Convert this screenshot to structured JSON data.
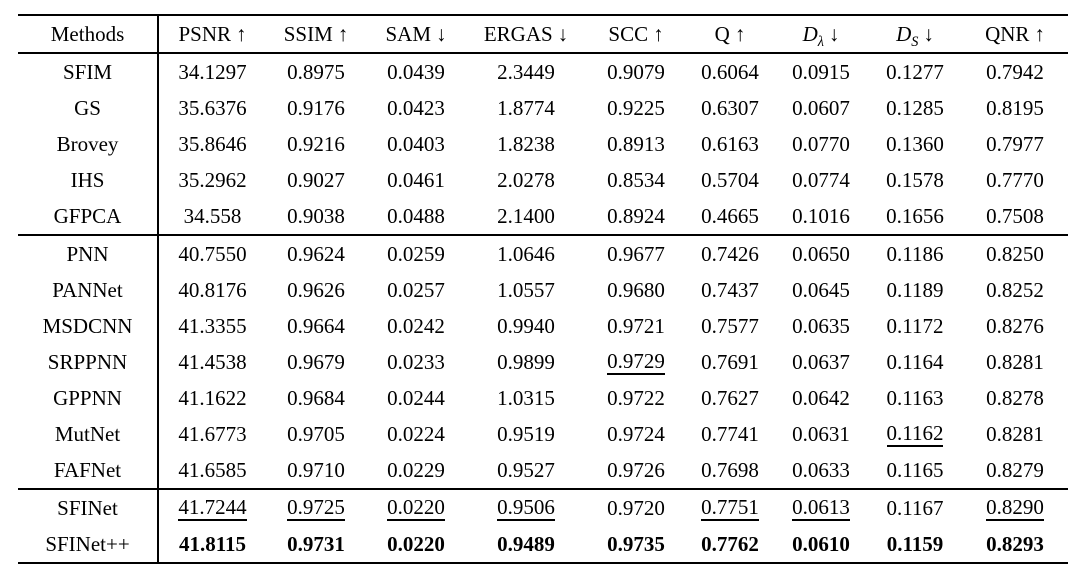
{
  "colors": {
    "text": "#000000",
    "background": "#ffffff",
    "rule": "#000000"
  },
  "table": {
    "columns": [
      {
        "key": "methods",
        "label": "Methods",
        "arrow": "",
        "italic": false
      },
      {
        "key": "psnr",
        "label": "PSNR",
        "arrow": "↑",
        "italic": false
      },
      {
        "key": "ssim",
        "label": "SSIM",
        "arrow": "↑",
        "italic": false
      },
      {
        "key": "sam",
        "label": "SAM",
        "arrow": "↓",
        "italic": false
      },
      {
        "key": "ergas",
        "label": "ERGAS",
        "arrow": "↓",
        "italic": false
      },
      {
        "key": "scc",
        "label": "SCC",
        "arrow": "↑",
        "italic": false
      },
      {
        "key": "q",
        "label": "Q",
        "arrow": "↑",
        "italic": false
      },
      {
        "key": "d-lambda",
        "label": "D",
        "sub": "λ",
        "arrow": "↓",
        "italic": true
      },
      {
        "key": "d-s",
        "label": "D",
        "sub": "S",
        "arrow": "↓",
        "italic": true
      },
      {
        "key": "qnr",
        "label": "QNR",
        "arrow": "↑",
        "italic": false
      }
    ],
    "groups": [
      {
        "rows": [
          {
            "method": "SFIM",
            "values": [
              "34.1297",
              "0.8975",
              "0.0439",
              "2.3449",
              "0.9079",
              "0.6064",
              "0.0915",
              "0.1277",
              "0.7942"
            ],
            "underline": [],
            "bold": []
          },
          {
            "method": "GS",
            "values": [
              "35.6376",
              "0.9176",
              "0.0423",
              "1.8774",
              "0.9225",
              "0.6307",
              "0.0607",
              "0.1285",
              "0.8195"
            ],
            "underline": [],
            "bold": []
          },
          {
            "method": "Brovey",
            "values": [
              "35.8646",
              "0.9216",
              "0.0403",
              "1.8238",
              "0.8913",
              "0.6163",
              "0.0770",
              "0.1360",
              "0.7977"
            ],
            "underline": [],
            "bold": []
          },
          {
            "method": "IHS",
            "values": [
              "35.2962",
              "0.9027",
              "0.0461",
              "2.0278",
              "0.8534",
              "0.5704",
              "0.0774",
              "0.1578",
              "0.7770"
            ],
            "underline": [],
            "bold": []
          },
          {
            "method": "GFPCA",
            "values": [
              "34.558",
              "0.9038",
              "0.0488",
              "2.1400",
              "0.8924",
              "0.4665",
              "0.1016",
              "0.1656",
              "0.7508"
            ],
            "underline": [],
            "bold": []
          }
        ]
      },
      {
        "rows": [
          {
            "method": "PNN",
            "values": [
              "40.7550",
              "0.9624",
              "0.0259",
              "1.0646",
              "0.9677",
              "0.7426",
              "0.0650",
              "0.1186",
              "0.8250"
            ],
            "underline": [],
            "bold": []
          },
          {
            "method": "PANNet",
            "values": [
              "40.8176",
              "0.9626",
              "0.0257",
              "1.0557",
              "0.9680",
              "0.7437",
              "0.0645",
              "0.1189",
              "0.8252"
            ],
            "underline": [],
            "bold": []
          },
          {
            "method": "MSDCNN",
            "values": [
              "41.3355",
              "0.9664",
              "0.0242",
              "0.9940",
              "0.9721",
              "0.7577",
              "0.0635",
              "0.1172",
              "0.8276"
            ],
            "underline": [],
            "bold": []
          },
          {
            "method": "SRPPNN",
            "values": [
              "41.4538",
              "0.9679",
              "0.0233",
              "0.9899",
              "0.9729",
              "0.7691",
              "0.0637",
              "0.1164",
              "0.8281"
            ],
            "underline": [
              4
            ],
            "bold": []
          },
          {
            "method": "GPPNN",
            "values": [
              "41.1622",
              "0.9684",
              "0.0244",
              "1.0315",
              "0.9722",
              "0.7627",
              "0.0642",
              "0.1163",
              "0.8278"
            ],
            "underline": [],
            "bold": []
          },
          {
            "method": "MutNet",
            "values": [
              "41.6773",
              "0.9705",
              "0.0224",
              "0.9519",
              "0.9724",
              "0.7741",
              "0.0631",
              "0.1162",
              "0.8281"
            ],
            "underline": [
              7
            ],
            "bold": []
          },
          {
            "method": "FAFNet",
            "values": [
              "41.6585",
              "0.9710",
              "0.0229",
              "0.9527",
              "0.9726",
              "0.7698",
              "0.0633",
              "0.1165",
              "0.8279"
            ],
            "underline": [],
            "bold": []
          }
        ]
      },
      {
        "rows": [
          {
            "method": "SFINet",
            "values": [
              "41.7244",
              "0.9725",
              "0.0220",
              "0.9506",
              "0.9720",
              "0.7751",
              "0.0613",
              "0.1167",
              "0.8290"
            ],
            "underline": [
              0,
              1,
              2,
              3,
              5,
              6,
              8
            ],
            "bold": []
          },
          {
            "method": "SFINet++",
            "values": [
              "41.8115",
              "0.9731",
              "0.0220",
              "0.9489",
              "0.9735",
              "0.7762",
              "0.0610",
              "0.1159",
              "0.8293"
            ],
            "underline": [],
            "bold": [
              0,
              1,
              2,
              3,
              4,
              5,
              6,
              7,
              8
            ]
          }
        ]
      }
    ]
  }
}
